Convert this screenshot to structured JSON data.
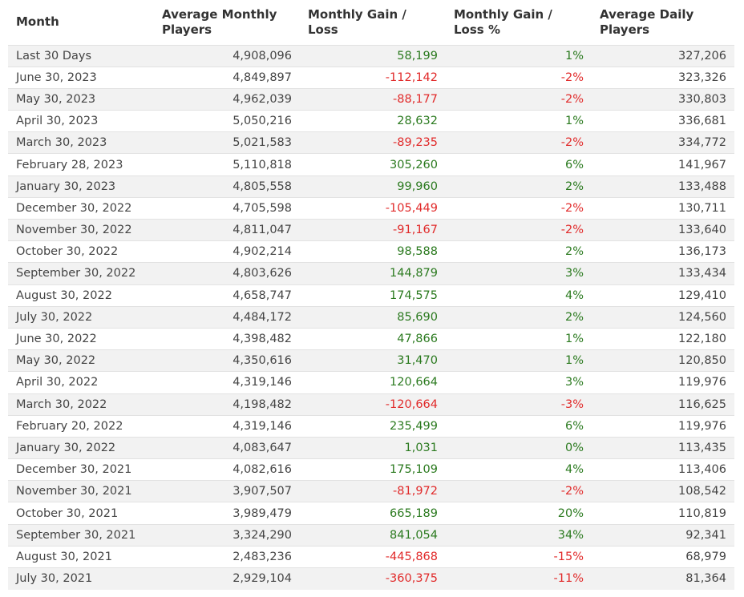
{
  "headers": [
    "Month",
    "Average Monthly Players",
    "Monthly Gain / Loss",
    "Monthly Gain / Loss %",
    "Average Daily Players"
  ],
  "colors": {
    "positive": "#2b7a1f",
    "negative": "#e12a2a"
  },
  "rows": [
    {
      "month": "Last 30 Days",
      "avg_monthly": "4,908,096",
      "gain": "58,199",
      "pct": "1%",
      "avg_daily": "327,206",
      "sign": "pos"
    },
    {
      "month": "June 30, 2023",
      "avg_monthly": "4,849,897",
      "gain": "-112,142",
      "pct": "-2%",
      "avg_daily": "323,326",
      "sign": "neg"
    },
    {
      "month": "May 30, 2023",
      "avg_monthly": "4,962,039",
      "gain": "-88,177",
      "pct": "-2%",
      "avg_daily": "330,803",
      "sign": "neg"
    },
    {
      "month": "April 30, 2023",
      "avg_monthly": "5,050,216",
      "gain": "28,632",
      "pct": "1%",
      "avg_daily": "336,681",
      "sign": "pos"
    },
    {
      "month": "March 30, 2023",
      "avg_monthly": "5,021,583",
      "gain": "-89,235",
      "pct": "-2%",
      "avg_daily": "334,772",
      "sign": "neg"
    },
    {
      "month": "February 28, 2023",
      "avg_monthly": "5,110,818",
      "gain": "305,260",
      "pct": "6%",
      "avg_daily": "141,967",
      "sign": "pos"
    },
    {
      "month": "January 30, 2023",
      "avg_monthly": "4,805,558",
      "gain": "99,960",
      "pct": "2%",
      "avg_daily": "133,488",
      "sign": "pos"
    },
    {
      "month": "December 30, 2022",
      "avg_monthly": "4,705,598",
      "gain": "-105,449",
      "pct": "-2%",
      "avg_daily": "130,711",
      "sign": "neg"
    },
    {
      "month": "November 30, 2022",
      "avg_monthly": "4,811,047",
      "gain": "-91,167",
      "pct": "-2%",
      "avg_daily": "133,640",
      "sign": "neg"
    },
    {
      "month": "October 30, 2022",
      "avg_monthly": "4,902,214",
      "gain": "98,588",
      "pct": "2%",
      "avg_daily": "136,173",
      "sign": "pos"
    },
    {
      "month": "September 30, 2022",
      "avg_monthly": "4,803,626",
      "gain": "144,879",
      "pct": "3%",
      "avg_daily": "133,434",
      "sign": "pos"
    },
    {
      "month": "August 30, 2022",
      "avg_monthly": "4,658,747",
      "gain": "174,575",
      "pct": "4%",
      "avg_daily": "129,410",
      "sign": "pos"
    },
    {
      "month": "July 30, 2022",
      "avg_monthly": "4,484,172",
      "gain": "85,690",
      "pct": "2%",
      "avg_daily": "124,560",
      "sign": "pos"
    },
    {
      "month": "June 30, 2022",
      "avg_monthly": "4,398,482",
      "gain": "47,866",
      "pct": "1%",
      "avg_daily": "122,180",
      "sign": "pos"
    },
    {
      "month": "May 30, 2022",
      "avg_monthly": "4,350,616",
      "gain": "31,470",
      "pct": "1%",
      "avg_daily": "120,850",
      "sign": "pos"
    },
    {
      "month": "April 30, 2022",
      "avg_monthly": "4,319,146",
      "gain": "120,664",
      "pct": "3%",
      "avg_daily": "119,976",
      "sign": "pos"
    },
    {
      "month": "March 30, 2022",
      "avg_monthly": "4,198,482",
      "gain": "-120,664",
      "pct": "-3%",
      "avg_daily": "116,625",
      "sign": "neg"
    },
    {
      "month": "February 20, 2022",
      "avg_monthly": "4,319,146",
      "gain": "235,499",
      "pct": "6%",
      "avg_daily": "119,976",
      "sign": "pos"
    },
    {
      "month": "January 30, 2022",
      "avg_monthly": "4,083,647",
      "gain": "1,031",
      "pct": "0%",
      "avg_daily": "113,435",
      "sign": "pos"
    },
    {
      "month": "December 30, 2021",
      "avg_monthly": "4,082,616",
      "gain": "175,109",
      "pct": "4%",
      "avg_daily": "113,406",
      "sign": "pos"
    },
    {
      "month": "November 30, 2021",
      "avg_monthly": "3,907,507",
      "gain": "-81,972",
      "pct": "-2%",
      "avg_daily": "108,542",
      "sign": "neg"
    },
    {
      "month": "October 30, 2021",
      "avg_monthly": "3,989,479",
      "gain": "665,189",
      "pct": "20%",
      "avg_daily": "110,819",
      "sign": "pos"
    },
    {
      "month": "September 30, 2021",
      "avg_monthly": "3,324,290",
      "gain": "841,054",
      "pct": "34%",
      "avg_daily": "92,341",
      "sign": "pos"
    },
    {
      "month": "August 30, 2021",
      "avg_monthly": "2,483,236",
      "gain": "-445,868",
      "pct": "-15%",
      "avg_daily": "68,979",
      "sign": "neg"
    },
    {
      "month": "July 30, 2021",
      "avg_monthly": "2,929,104",
      "gain": "-360,375",
      "pct": "-11%",
      "avg_daily": "81,364",
      "sign": "neg"
    }
  ]
}
